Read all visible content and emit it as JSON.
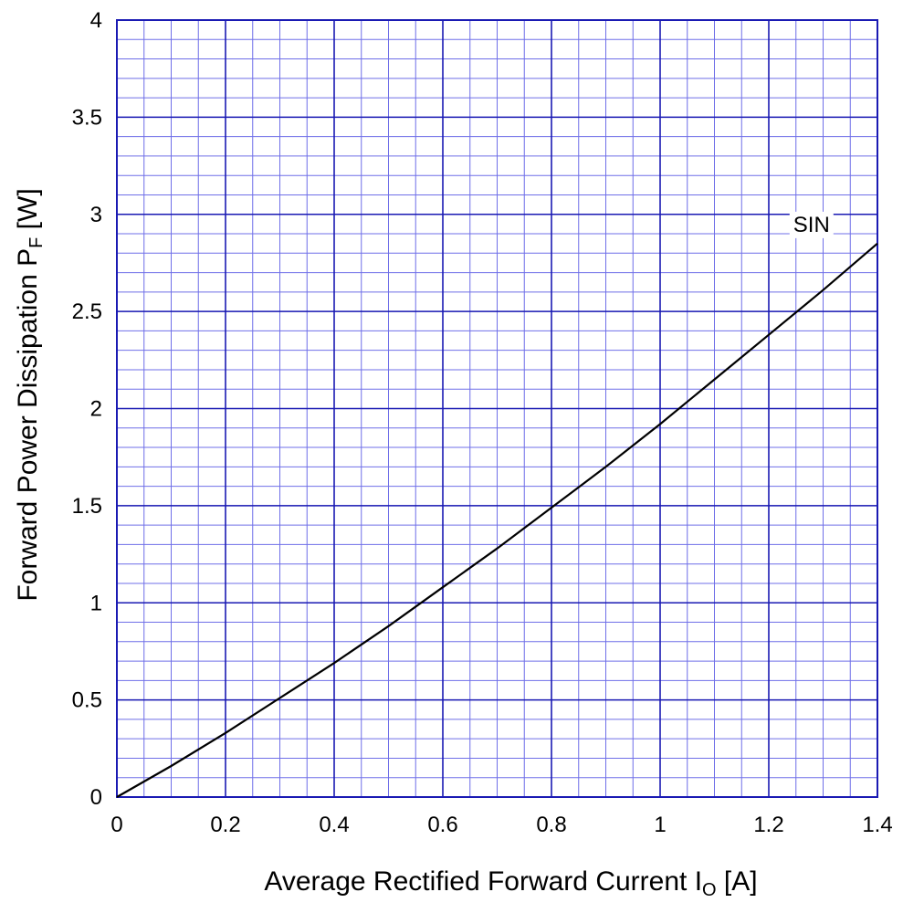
{
  "chart_data": {
    "type": "line",
    "xlabel_main": "Average Rectified Forward Current  I",
    "xlabel_sub": "O",
    "xlabel_unit": " [A]",
    "ylabel_main": "Forward Power Dissipation  P",
    "ylabel_sub": "F",
    "ylabel_unit": "  [W]",
    "xlim": [
      0,
      1.4
    ],
    "ylim": [
      0,
      4
    ],
    "x_ticks": [
      "0",
      "0.2",
      "0.4",
      "0.6",
      "0.8",
      "1",
      "1.2",
      "1.4"
    ],
    "y_ticks": [
      "0",
      "0.5",
      "1",
      "1.5",
      "2",
      "2.5",
      "3",
      "3.5",
      "4"
    ],
    "x_major_step": 0.2,
    "x_minor_step": 0.05,
    "y_major_step": 0.5,
    "y_minor_step": 0.1,
    "grid": true,
    "colors": {
      "grid_major": "#1a1ab3",
      "grid_minor": "#6f6fe8",
      "line": "#000000"
    },
    "series": [
      {
        "name": "SIN",
        "x": [
          0,
          0.1,
          0.2,
          0.3,
          0.4,
          0.5,
          0.6,
          0.7,
          0.8,
          0.9,
          1.0,
          1.1,
          1.2,
          1.3,
          1.4
        ],
        "y": [
          0,
          0.16,
          0.33,
          0.51,
          0.69,
          0.88,
          1.08,
          1.28,
          1.49,
          1.7,
          1.92,
          2.15,
          2.38,
          2.61,
          2.85
        ]
      }
    ]
  }
}
